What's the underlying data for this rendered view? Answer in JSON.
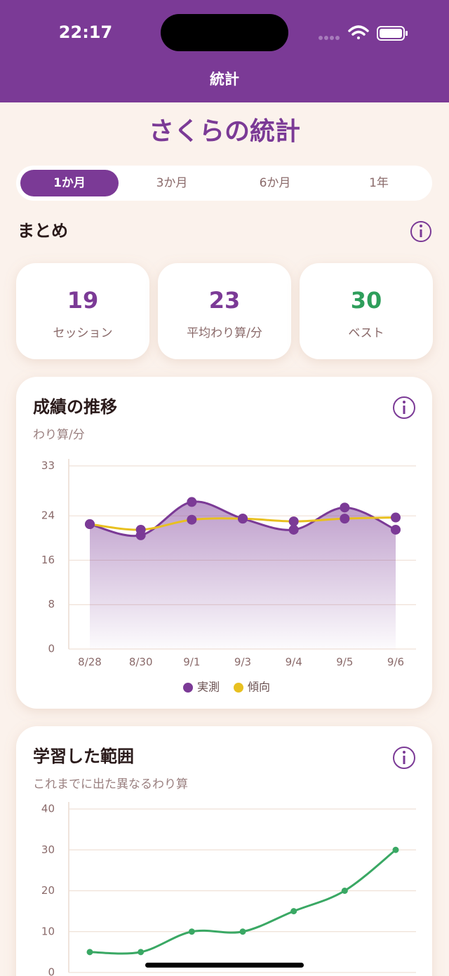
{
  "status_bar": {
    "time": "22:17"
  },
  "nav": {
    "title": "統計"
  },
  "header": {
    "title": "さくらの統計"
  },
  "tabs": {
    "items": [
      "1か月",
      "3か月",
      "6か月",
      "1年"
    ],
    "active": 0
  },
  "summary": {
    "title": "まとめ",
    "cards": [
      {
        "value": 19,
        "label": "セッション",
        "color": "#7b3a96"
      },
      {
        "value": 23,
        "label": "平均わり算/分",
        "color": "#7b3a96"
      },
      {
        "value": 30,
        "label": "ベスト",
        "color": "#2e9e5b"
      }
    ]
  },
  "chart_data": [
    {
      "type": "line",
      "title": "成績の推移",
      "subtitle": "わり算/分",
      "categories": [
        "8/28",
        "8/30",
        "9/1",
        "9/3",
        "9/4",
        "9/5",
        "9/6"
      ],
      "series": [
        {
          "name": "実測",
          "color": "#7b3a96",
          "area": true,
          "values": [
            22.5,
            20.5,
            26.5,
            23.5,
            21.5,
            25.5,
            21.5
          ]
        },
        {
          "name": "傾向",
          "color": "#e8c020",
          "marker_color": "#7b3a96",
          "values": [
            22.5,
            21.5,
            23.3,
            23.5,
            23,
            23.5,
            23.7
          ]
        }
      ],
      "ylim": [
        0,
        33
      ],
      "yticks": [
        0,
        8,
        16,
        24,
        33
      ],
      "grid": true,
      "legend": "bottom"
    },
    {
      "type": "line",
      "title": "学習した範囲",
      "subtitle": "これまでに出た異なるわり算",
      "categories": [
        null,
        null,
        null,
        null,
        null,
        null,
        null
      ],
      "series": [
        {
          "color": "#3aa864",
          "values": [
            5,
            5,
            10,
            10,
            15,
            20,
            30
          ]
        }
      ],
      "ylim": [
        0,
        40
      ],
      "yticks": [
        0,
        10,
        20,
        30,
        40
      ],
      "grid": true
    }
  ]
}
